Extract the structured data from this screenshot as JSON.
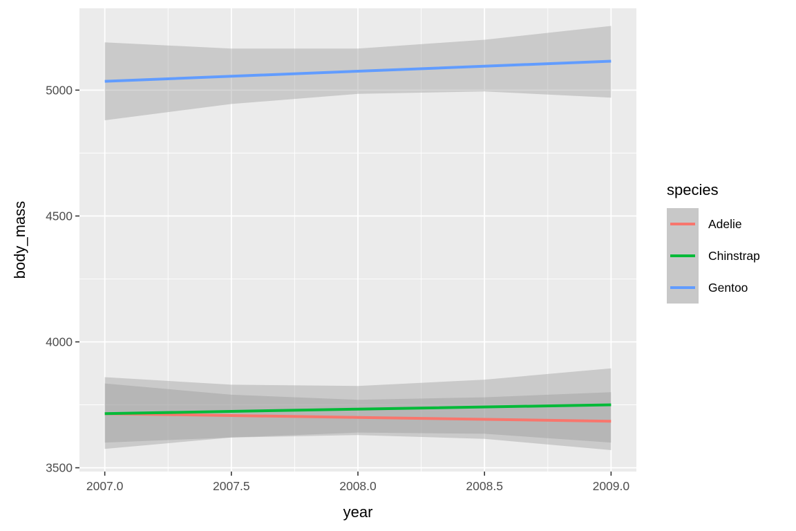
{
  "chart_data": {
    "type": "line",
    "xlabel": "year",
    "ylabel": "body_mass",
    "xlim": [
      2006.9,
      2009.1
    ],
    "ylim": [
      3485,
      5325
    ],
    "x_ticks": [
      2007.0,
      2007.5,
      2008.0,
      2008.5,
      2009.0
    ],
    "x_tick_labels": [
      "2007.0",
      "2007.5",
      "2008.0",
      "2008.5",
      "2009.0"
    ],
    "y_ticks": [
      3500,
      4000,
      4500,
      5000
    ],
    "y_tick_labels": [
      "3500",
      "4000",
      "4500",
      "5000"
    ],
    "grid": true,
    "legend_title": "species",
    "legend_position": "right",
    "series": [
      {
        "name": "Adelie",
        "color": "#F8766D",
        "x": [
          2007.0,
          2008.0,
          2009.0
        ],
        "y": [
          3715,
          3700,
          3685
        ],
        "ci_x": [
          2007.0,
          2007.5,
          2008.0,
          2008.5,
          2009.0
        ],
        "ci_low": [
          3600,
          3620,
          3630,
          3615,
          3570
        ],
        "ci_high": [
          3835,
          3790,
          3770,
          3780,
          3800
        ]
      },
      {
        "name": "Chinstrap",
        "color": "#00BA38",
        "x": [
          2007.0,
          2008.0,
          2009.0
        ],
        "y": [
          3715,
          3733,
          3750
        ],
        "ci_x": [
          2007.0,
          2007.5,
          2008.0,
          2008.5,
          2009.0
        ],
        "ci_low": [
          3575,
          3620,
          3640,
          3635,
          3600
        ],
        "ci_high": [
          3860,
          3830,
          3825,
          3850,
          3895
        ]
      },
      {
        "name": "Gentoo",
        "color": "#619CFF",
        "x": [
          2007.0,
          2008.0,
          2009.0
        ],
        "y": [
          5035,
          5075,
          5115
        ],
        "ci_x": [
          2007.0,
          2007.5,
          2008.0,
          2008.5,
          2009.0
        ],
        "ci_low": [
          4880,
          4945,
          4985,
          4995,
          4970
        ],
        "ci_high": [
          5190,
          5165,
          5165,
          5200,
          5255
        ]
      }
    ]
  }
}
